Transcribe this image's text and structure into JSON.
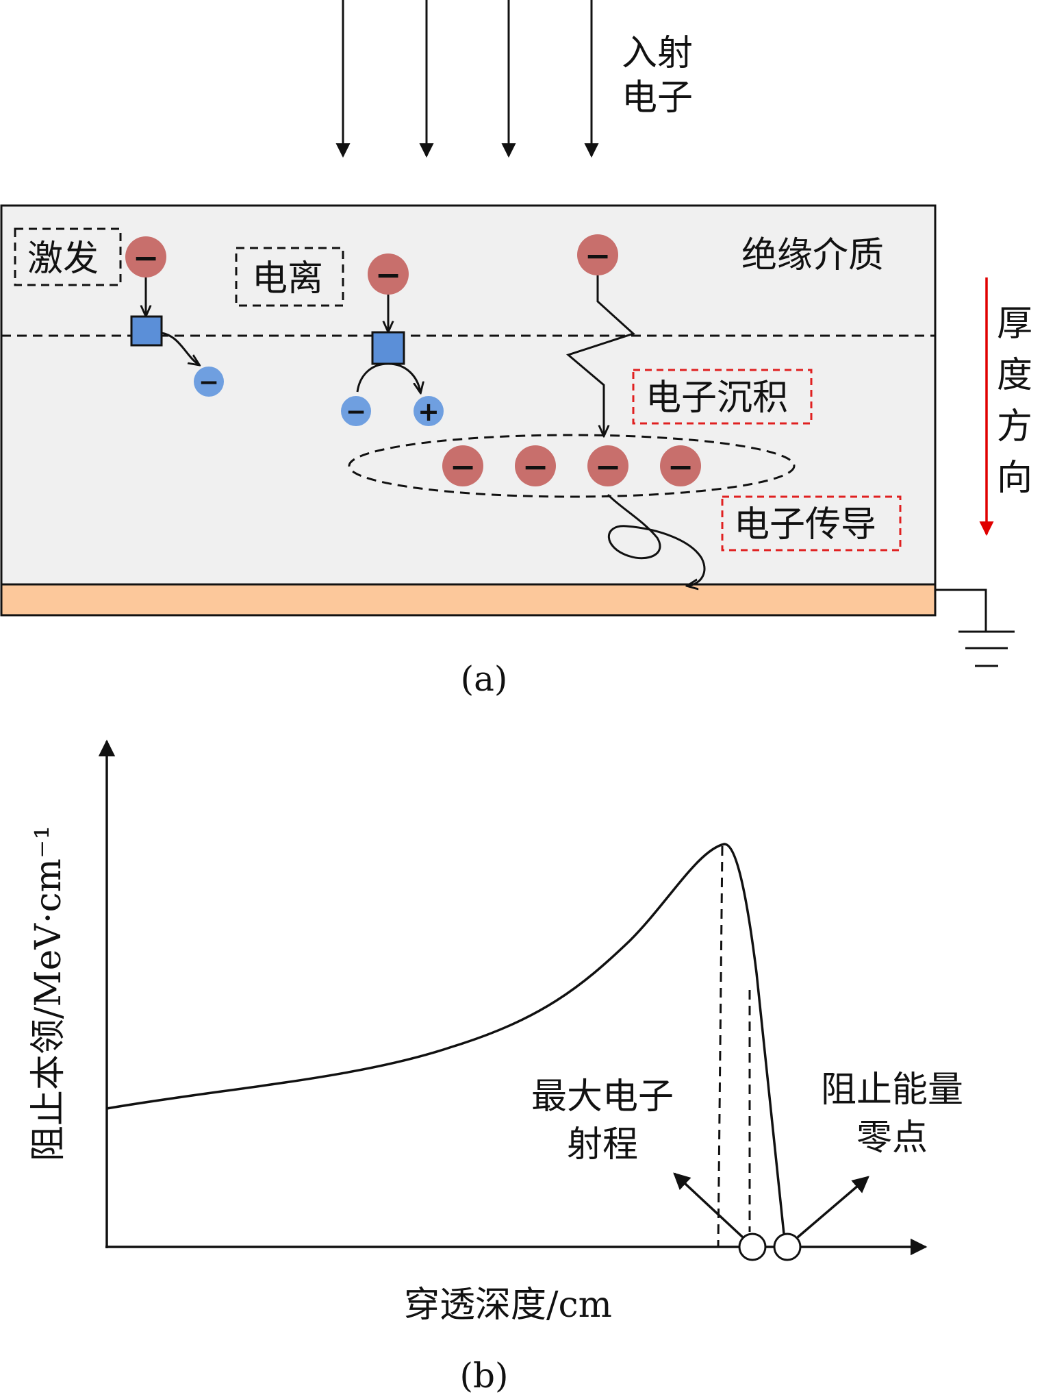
{
  "panel_a": {
    "incident_label_line1": "入射",
    "incident_label_line2": "电子",
    "medium_label": "绝缘介质",
    "excitation_label": "激发",
    "ionization_label": "电离",
    "deposition_label": "电子沉积",
    "conduction_label": "电子传导",
    "thickness_label": [
      "厚",
      "度",
      "方",
      "向"
    ],
    "minus_symbol": "−",
    "plus_symbol": "+",
    "caption": "(a)",
    "colors": {
      "medium_fill": "#f0f0f0",
      "substrate_fill": "#fcc89b",
      "electron_red": "#c86f6c",
      "electron_blue": "#6f9fe0",
      "excited_square": "#5b8fd8",
      "red_dash": "#e02020",
      "thickness_arrow": "#e00000"
    }
  },
  "panel_b": {
    "ylabel": "阻止本领/MeV·cm⁻¹",
    "xlabel": "穿透深度/cm",
    "max_range_line1": "最大电子",
    "max_range_line2": "射程",
    "zero_point_line1": "阻止能量",
    "zero_point_line2": "零点",
    "caption": "(b)"
  }
}
